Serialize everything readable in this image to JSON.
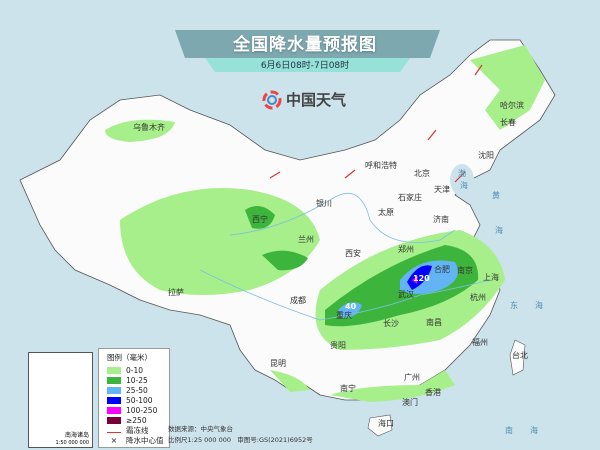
{
  "header": {
    "title": "全国降水量预报图",
    "subtitle": "6月6日08时-7日08时",
    "brand": "中国天气"
  },
  "cities": [
    {
      "name": "乌鲁木齐"
    },
    {
      "name": "哈尔滨"
    },
    {
      "name": "长春"
    },
    {
      "name": "沈阳"
    },
    {
      "name": "呼和浩特"
    },
    {
      "name": "北京"
    },
    {
      "name": "天津"
    },
    {
      "name": "石家庄"
    },
    {
      "name": "太原"
    },
    {
      "name": "济南"
    },
    {
      "name": "银川"
    },
    {
      "name": "西宁"
    },
    {
      "name": "兰州"
    },
    {
      "name": "西安"
    },
    {
      "name": "郑州"
    },
    {
      "name": "合肥"
    },
    {
      "name": "南京"
    },
    {
      "name": "上海"
    },
    {
      "name": "武汉"
    },
    {
      "name": "杭州"
    },
    {
      "name": "重庆"
    },
    {
      "name": "成都"
    },
    {
      "name": "长沙"
    },
    {
      "name": "南昌"
    },
    {
      "name": "贵阳"
    },
    {
      "name": "拉萨"
    },
    {
      "name": "昆明"
    },
    {
      "name": "福州"
    },
    {
      "name": "台北"
    },
    {
      "name": "南宁"
    },
    {
      "name": "广州"
    },
    {
      "name": "香港"
    },
    {
      "name": "澳门"
    },
    {
      "name": "海口"
    }
  ],
  "seas": [
    "黄",
    "海",
    "东",
    "海",
    "南",
    "海",
    "渤",
    "海"
  ],
  "precip_centers": [
    "120",
    "40"
  ],
  "legend": {
    "title": "图例（毫米）",
    "items": [
      {
        "label": "0-10",
        "color": "#a6ef8a"
      },
      {
        "label": "10-25",
        "color": "#3db53d"
      },
      {
        "label": "25-50",
        "color": "#63b4f5"
      },
      {
        "label": "50-100",
        "color": "#0000fe"
      },
      {
        "label": "100-250",
        "color": "#fe00fe"
      },
      {
        "label": "≥250",
        "color": "#7a0039"
      }
    ],
    "frost_line": "霜冻线",
    "center": "降水中心值"
  },
  "source": {
    "data": "数据来源：中央气象台",
    "scale": "比例尺1:25 000 000",
    "approval": "审图号:GS(2021)6952号"
  },
  "inset": {
    "title": "南海诸岛",
    "scale": "1:50 000 000"
  }
}
